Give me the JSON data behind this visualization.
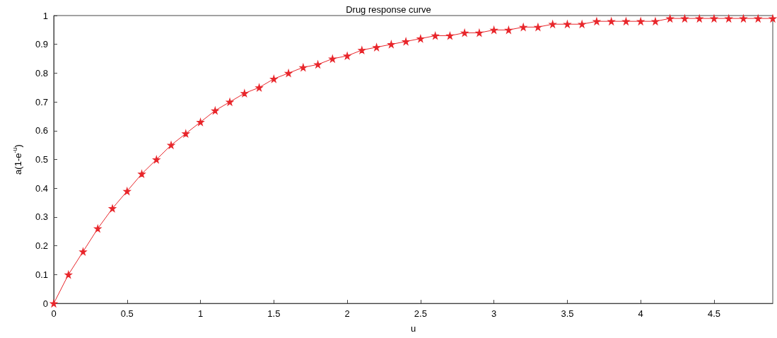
{
  "chart_data": {
    "type": "line",
    "title": "Drug response curve",
    "xlabel": "u",
    "ylabel": "a(1-e$^{-u}$)",
    "x": [
      0,
      0.1,
      0.2,
      0.3,
      0.4,
      0.5,
      0.6,
      0.7,
      0.8,
      0.9,
      1,
      1.1,
      1.2,
      1.3,
      1.4,
      1.5,
      1.6,
      1.7,
      1.8,
      1.9,
      2,
      2.1,
      2.2,
      2.3,
      2.4,
      2.5,
      2.6,
      2.7,
      2.8,
      2.9,
      3,
      3.1,
      3.2,
      3.3,
      3.4,
      3.5,
      3.6,
      3.7,
      3.8,
      3.9,
      4,
      4.1,
      4.2,
      4.3,
      4.4,
      4.5,
      4.6,
      4.7,
      4.8,
      4.9
    ],
    "series": [
      {
        "color": "#e8262b",
        "values": [
          0,
          0.1,
          0.18,
          0.26,
          0.33,
          0.39,
          0.45,
          0.5,
          0.55,
          0.59,
          0.63,
          0.67,
          0.7,
          0.73,
          0.75,
          0.78,
          0.8,
          0.82,
          0.83,
          0.85,
          0.86,
          0.88,
          0.89,
          0.9,
          0.91,
          0.92,
          0.93,
          0.93,
          0.94,
          0.94,
          0.95,
          0.95,
          0.96,
          0.96,
          0.97,
          0.97,
          0.97,
          0.98,
          0.98,
          0.98,
          0.98,
          0.98,
          0.99,
          0.99,
          0.99,
          0.99,
          0.99,
          0.99,
          0.99,
          0.99
        ]
      }
    ],
    "xlim": [
      0,
      4.9
    ],
    "xticks": [
      0,
      0.5,
      1,
      1.5,
      2,
      2.5,
      3,
      3.5,
      4,
      4.5
    ],
    "ylim": [
      0,
      1
    ],
    "yticks": [
      0,
      0.1,
      0.2,
      0.3,
      0.4,
      0.5,
      0.6,
      0.7,
      0.8,
      0.9,
      1
    ],
    "grid": false,
    "marker": "star",
    "line_style": "solid"
  }
}
